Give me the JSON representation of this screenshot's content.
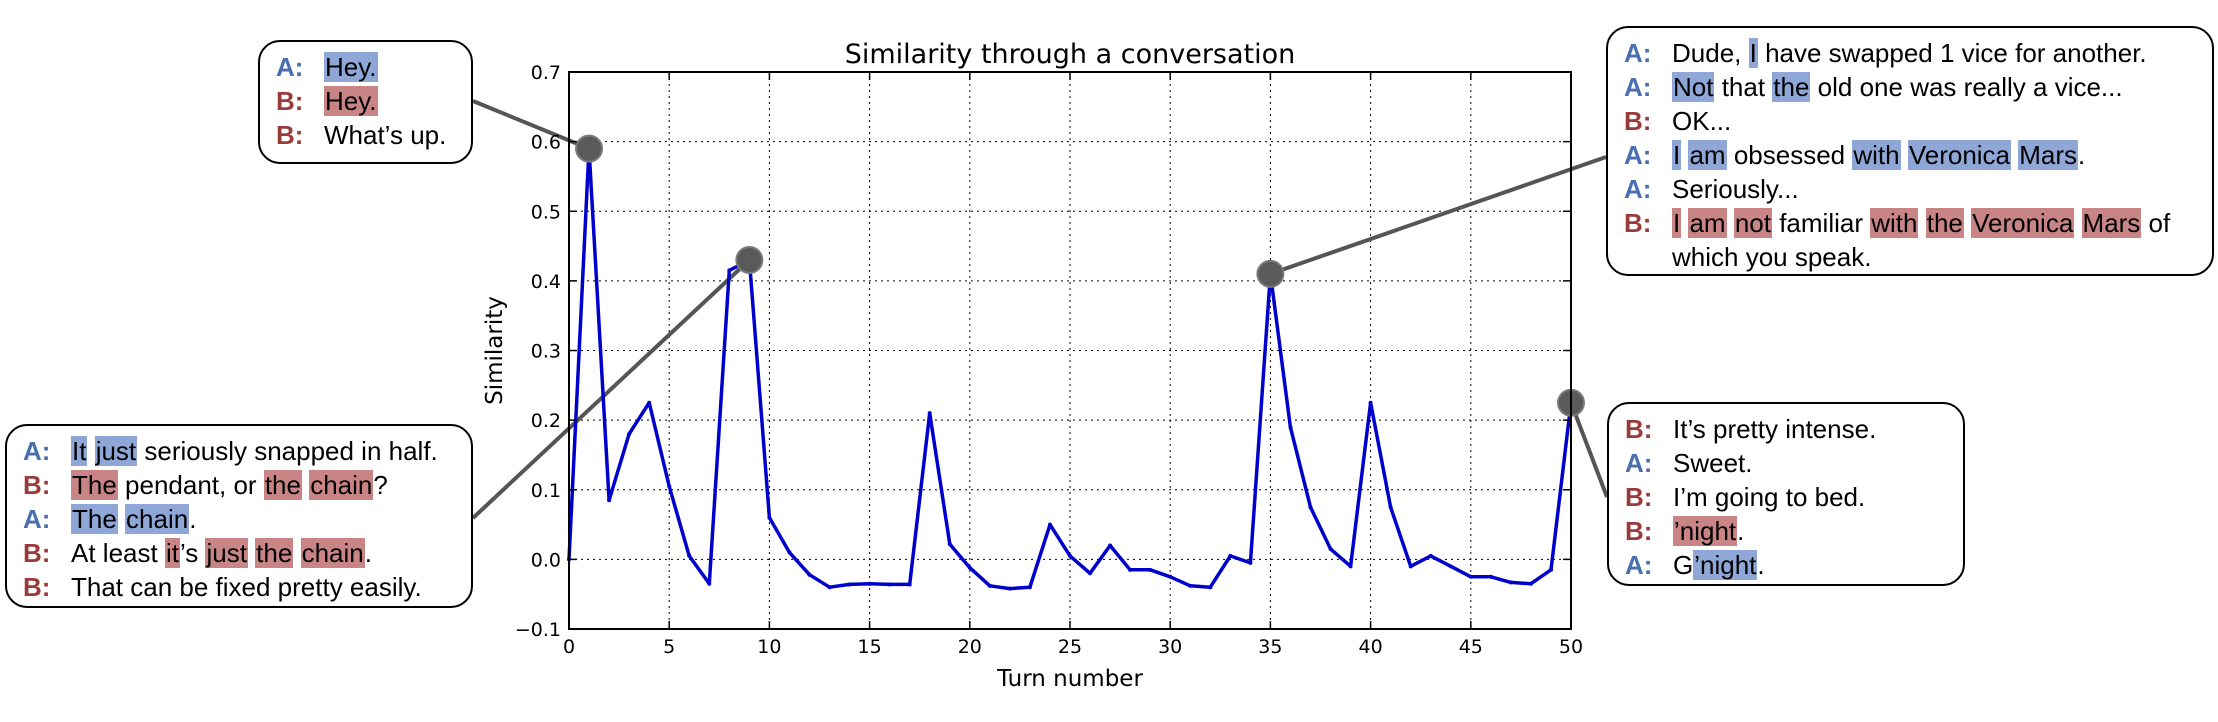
{
  "chart_data": {
    "type": "line",
    "title": "Similarity through a conversation",
    "xlabel": "Turn number",
    "ylabel": "Similarity",
    "xlim": [
      0,
      50
    ],
    "ylim": [
      -0.1,
      0.7
    ],
    "xticks": [
      0,
      5,
      10,
      15,
      20,
      25,
      30,
      35,
      40,
      45,
      50
    ],
    "yticks": [
      -0.1,
      0.0,
      0.1,
      0.2,
      0.3,
      0.4,
      0.5,
      0.6,
      0.7
    ],
    "xtick_labels": [
      "0",
      "5",
      "10",
      "15",
      "20",
      "25",
      "30",
      "35",
      "40",
      "45",
      "50"
    ],
    "ytick_labels": [
      "−0.1",
      "0.0",
      "0.1",
      "0.2",
      "0.3",
      "0.4",
      "0.5",
      "0.6",
      "0.7"
    ],
    "grid": true,
    "series": [
      {
        "color": "#0000cc",
        "x": [
          0,
          1,
          2,
          3,
          4,
          5,
          6,
          7,
          8,
          9,
          10,
          11,
          12,
          13,
          14,
          15,
          16,
          17,
          18,
          19,
          20,
          21,
          22,
          23,
          24,
          25,
          26,
          27,
          28,
          29,
          30,
          31,
          32,
          33,
          34,
          35,
          36,
          37,
          38,
          39,
          40,
          41,
          42,
          43,
          44,
          45,
          46,
          47,
          48,
          49,
          50
        ],
        "y": [
          0.0,
          0.59,
          0.085,
          0.18,
          0.225,
          0.105,
          0.005,
          -0.035,
          0.415,
          0.43,
          0.06,
          0.01,
          -0.022,
          -0.04,
          -0.036,
          -0.035,
          -0.036,
          -0.036,
          0.21,
          0.022,
          -0.012,
          -0.038,
          -0.042,
          -0.04,
          0.05,
          0.005,
          -0.02,
          0.02,
          -0.015,
          -0.015,
          -0.025,
          -0.038,
          -0.04,
          0.005,
          -0.005,
          0.41,
          0.19,
          0.075,
          0.015,
          -0.01,
          0.225,
          0.075,
          -0.01,
          0.005,
          -0.01,
          -0.025,
          -0.025,
          -0.033,
          -0.035,
          -0.015,
          0.225
        ]
      }
    ],
    "highlights": [
      {
        "x": 1,
        "y": 0.59
      },
      {
        "x": 9,
        "y": 0.43
      },
      {
        "x": 35,
        "y": 0.41
      },
      {
        "x": 50,
        "y": 0.225
      }
    ],
    "colors": {
      "line": "#0000cc",
      "marker": "#5a5a5a",
      "speaker_A": "#4a6fb0",
      "speaker_B": "#9a3b3b",
      "highlight_A": "#8ea7d6",
      "highlight_B": "#c98585"
    }
  },
  "callouts": [
    {
      "lines": [
        {
          "speaker": "A",
          "segments": [
            {
              "t": "Hey.",
              "h": "A"
            }
          ]
        },
        {
          "speaker": "B",
          "segments": [
            {
              "t": "Hey.",
              "h": "B"
            }
          ]
        },
        {
          "speaker": "B",
          "segments": [
            {
              "t": "What’s up."
            }
          ]
        }
      ]
    },
    {
      "lines": [
        {
          "speaker": "A",
          "segments": [
            {
              "t": "It",
              "h": "A"
            },
            {
              "t": " "
            },
            {
              "t": "just",
              "h": "A"
            },
            {
              "t": " seriously snapped in half."
            }
          ]
        },
        {
          "speaker": "B",
          "segments": [
            {
              "t": "The",
              "h": "B"
            },
            {
              "t": " pendant, or "
            },
            {
              "t": "the",
              "h": "B"
            },
            {
              "t": " "
            },
            {
              "t": "chain",
              "h": "B"
            },
            {
              "t": "?"
            }
          ]
        },
        {
          "speaker": "A",
          "segments": [
            {
              "t": "The",
              "h": "A"
            },
            {
              "t": " "
            },
            {
              "t": "chain",
              "h": "A"
            },
            {
              "t": "."
            }
          ]
        },
        {
          "speaker": "B",
          "segments": [
            {
              "t": "At least "
            },
            {
              "t": "it",
              "h": "B"
            },
            {
              "t": "’s "
            },
            {
              "t": "just",
              "h": "B"
            },
            {
              "t": " "
            },
            {
              "t": "the",
              "h": "B"
            },
            {
              "t": " "
            },
            {
              "t": "chain",
              "h": "B"
            },
            {
              "t": "."
            }
          ]
        },
        {
          "speaker": "B",
          "segments": [
            {
              "t": "That can be fixed pretty easily."
            }
          ]
        }
      ]
    },
    {
      "lines": [
        {
          "speaker": "A",
          "segments": [
            {
              "t": "Dude, "
            },
            {
              "t": "I",
              "h": "A"
            },
            {
              "t": " have swapped 1 vice for another."
            }
          ]
        },
        {
          "speaker": "A",
          "segments": [
            {
              "t": "Not",
              "h": "A"
            },
            {
              "t": " that "
            },
            {
              "t": "the",
              "h": "A"
            },
            {
              "t": " old one was really a vice..."
            }
          ]
        },
        {
          "speaker": "B",
          "segments": [
            {
              "t": "OK..."
            }
          ]
        },
        {
          "speaker": "A",
          "segments": [
            {
              "t": "I",
              "h": "A"
            },
            {
              "t": " "
            },
            {
              "t": "am",
              "h": "A"
            },
            {
              "t": " obsessed "
            },
            {
              "t": "with",
              "h": "A"
            },
            {
              "t": " "
            },
            {
              "t": "Veronica",
              "h": "A"
            },
            {
              "t": " "
            },
            {
              "t": "Mars",
              "h": "A"
            },
            {
              "t": "."
            }
          ]
        },
        {
          "speaker": "A",
          "segments": [
            {
              "t": "Seriously..."
            }
          ]
        },
        {
          "speaker": "B",
          "wrap": true,
          "segments": [
            {
              "t": "I",
              "h": "B"
            },
            {
              "t": " "
            },
            {
              "t": "am",
              "h": "B"
            },
            {
              "t": " "
            },
            {
              "t": "not",
              "h": "B"
            },
            {
              "t": " familiar "
            },
            {
              "t": "with",
              "h": "B"
            },
            {
              "t": " "
            },
            {
              "t": "the",
              "h": "B"
            },
            {
              "t": " "
            },
            {
              "t": "Veronica",
              "h": "B"
            },
            {
              "t": " "
            },
            {
              "t": "Mars",
              "h": "B"
            },
            {
              "t": " of which you speak."
            }
          ]
        }
      ]
    },
    {
      "lines": [
        {
          "speaker": "B",
          "segments": [
            {
              "t": "It’s pretty intense."
            }
          ]
        },
        {
          "speaker": "A",
          "segments": [
            {
              "t": "Sweet."
            }
          ]
        },
        {
          "speaker": "B",
          "segments": [
            {
              "t": "I’m going to bed."
            }
          ]
        },
        {
          "speaker": "B",
          "segments": [
            {
              "t": "’night",
              "h": "B"
            },
            {
              "t": "."
            }
          ]
        },
        {
          "speaker": "A",
          "segments": [
            {
              "t": "G"
            },
            {
              "t": "’night",
              "h": "A"
            },
            {
              "t": "."
            }
          ]
        }
      ]
    }
  ]
}
